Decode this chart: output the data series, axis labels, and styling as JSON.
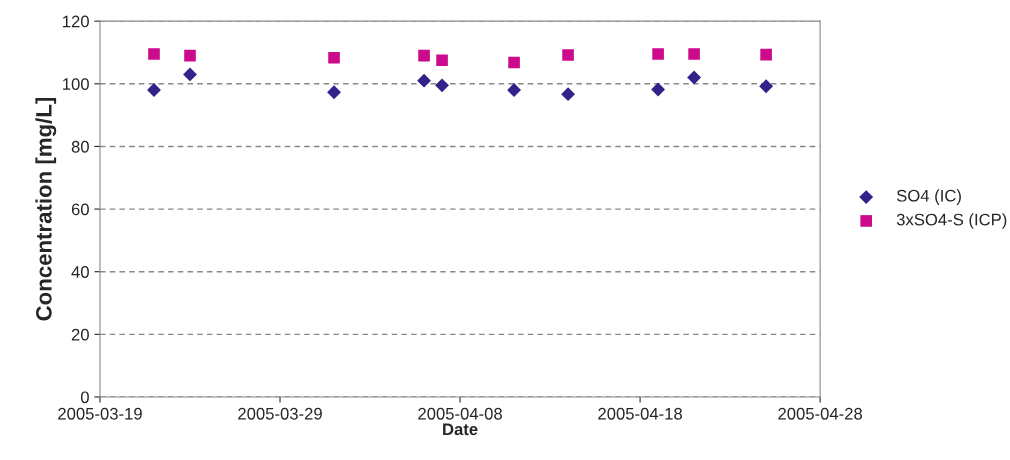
{
  "chart_data": {
    "type": "scatter",
    "xlabel": "Date",
    "ylabel": "Concentration [mg/L]",
    "x": [
      "2005-03-22",
      "2005-03-24",
      "2005-04-01",
      "2005-04-06",
      "2005-04-07",
      "2005-04-11",
      "2005-04-14",
      "2005-04-19",
      "2005-04-21",
      "2005-04-25"
    ],
    "series": [
      {
        "name": "SO4 (IC)",
        "color": "#33228a",
        "marker": "diamond",
        "values": [
          98,
          103,
          97.3,
          101,
          99.5,
          98,
          96.7,
          98.2,
          102,
          99.2
        ]
      },
      {
        "name": "3xSO4-S (ICP)",
        "color": "#cc0a8c",
        "marker": "square",
        "values": [
          109.5,
          109,
          108.3,
          109,
          107.5,
          106.8,
          109.2,
          109.5,
          109.5,
          109.3
        ]
      }
    ],
    "xlim": [
      "2005-03-19",
      "2005-04-28"
    ],
    "xticks": [
      "2005-03-19",
      "2005-03-29",
      "2005-04-08",
      "2005-04-18",
      "2005-04-28"
    ],
    "ylim": [
      0,
      120
    ],
    "yticks": [
      0,
      20,
      40,
      60,
      80,
      100,
      120
    ],
    "grid": "y",
    "legend": "right"
  }
}
